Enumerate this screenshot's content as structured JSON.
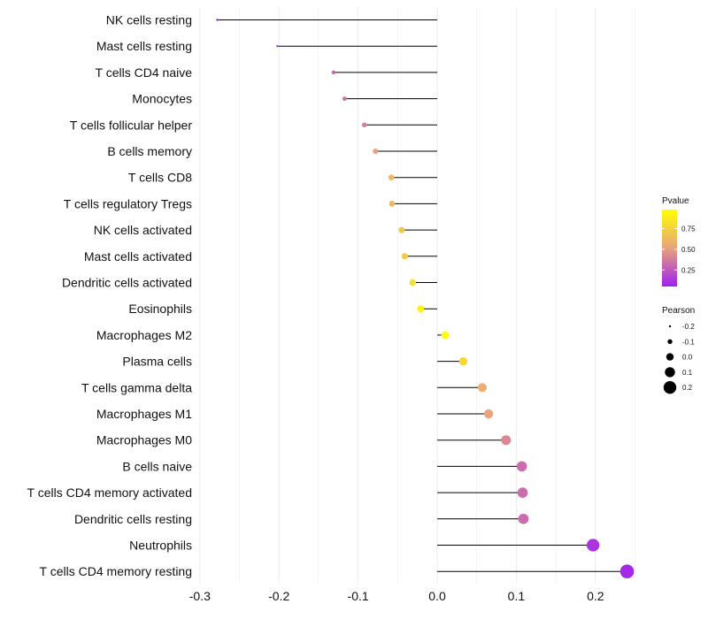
{
  "chart_data": {
    "type": "lollipop",
    "categories": [
      "NK cells resting",
      "Mast cells resting",
      "T cells CD4 naive",
      "Monocytes",
      "T cells follicular helper",
      "B cells memory",
      "T cells CD8",
      "T cells regulatory  Tregs ",
      "NK cells activated",
      "Mast cells activated",
      "Dendritic cells activated",
      "Eosinophils",
      "Macrophages M2",
      "Plasma cells",
      "T cells gamma delta",
      "Macrophages M1",
      "Macrophages M0",
      "B cells naive",
      "T cells CD4 memory activated",
      "Dendritic cells resting",
      "Neutrophils",
      "T cells CD4 memory resting"
    ],
    "pearson": [
      -0.278,
      -0.202,
      -0.131,
      -0.117,
      -0.092,
      -0.078,
      -0.058,
      -0.057,
      -0.045,
      -0.041,
      -0.031,
      -0.021,
      0.01,
      0.033,
      0.057,
      0.065,
      0.087,
      0.107,
      0.108,
      0.109,
      0.197,
      0.24
    ],
    "pvalue": [
      0.05,
      0.1,
      0.3,
      0.35,
      0.4,
      0.5,
      0.62,
      0.62,
      0.7,
      0.72,
      0.82,
      0.92,
      0.98,
      0.78,
      0.58,
      0.52,
      0.42,
      0.32,
      0.32,
      0.32,
      0.12,
      0.08
    ],
    "xlim": [
      -0.3,
      0.25
    ],
    "x_ticks": [
      -0.3,
      -0.2,
      -0.1,
      0.0,
      0.1,
      0.2
    ],
    "x_tick_labels": [
      "-0.3",
      "-0.2",
      "-0.1",
      "0.0",
      "0.1",
      "0.2"
    ],
    "xlabel": "",
    "ylabel": "",
    "grid": true,
    "colors": {
      "low": "#a020f0",
      "mid": "#e8a37c",
      "high": "#ffff00",
      "stem": "#000000",
      "grid": "#ebebeb"
    },
    "legend_color": {
      "title": "Pvalue",
      "ticks": [
        0.25,
        0.5,
        0.75
      ],
      "tick_labels": [
        "0.25",
        "0.50",
        "0.75"
      ],
      "range": [
        0.05,
        0.98
      ],
      "position": "right"
    },
    "legend_size": {
      "title": "Pearson",
      "values": [
        -0.2,
        -0.1,
        0.0,
        0.1,
        0.2
      ],
      "labels": [
        "-0.2",
        "-0.1",
        "0.0",
        "0.1",
        "0.2"
      ],
      "position": "right"
    }
  }
}
